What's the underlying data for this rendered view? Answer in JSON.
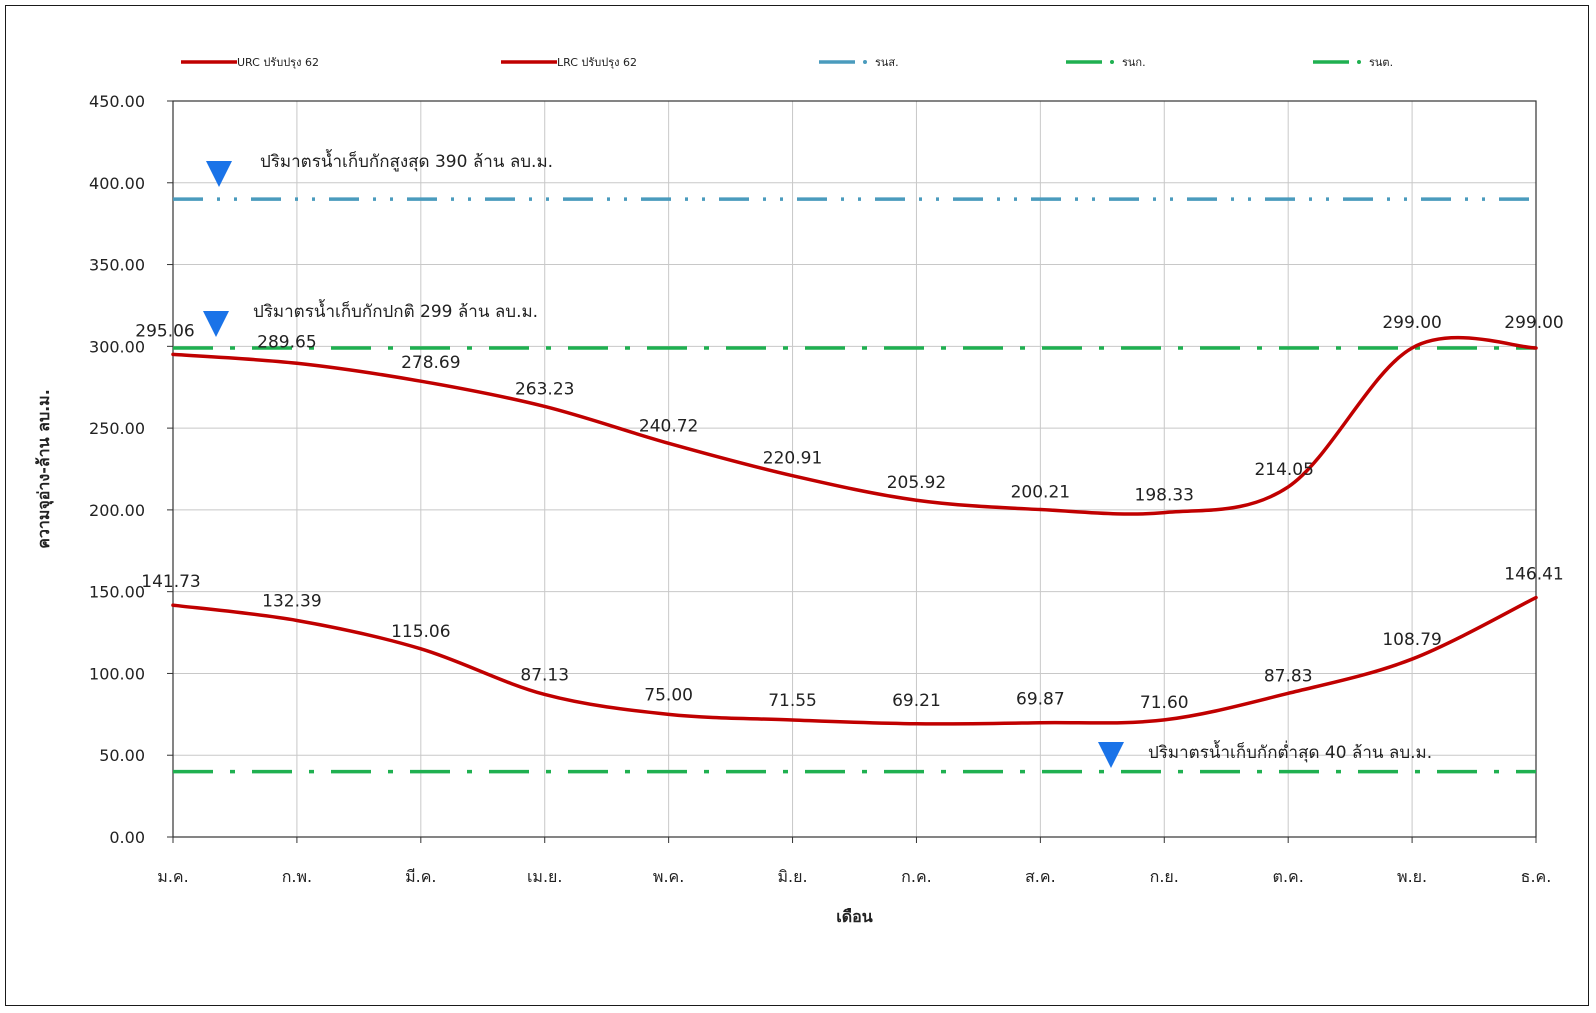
{
  "chart_data": {
    "type": "line",
    "xlabel": "เดือน",
    "ylabel": "ความจุอ่าง-ล้าน ลบ.ม.",
    "ylim": [
      0,
      450
    ],
    "yticks": [
      "0.00",
      "50.00",
      "100.00",
      "150.00",
      "200.00",
      "250.00",
      "300.00",
      "350.00",
      "400.00",
      "450.00"
    ],
    "grid": true,
    "legend_position": "top",
    "categories": [
      "ม.ค.",
      "ก.พ.",
      "มี.ค.",
      "เม.ย.",
      "พ.ค.",
      "มิ.ย.",
      "ก.ค.",
      "ส.ค.",
      "ก.ย.",
      "ต.ค.",
      "พ.ย.",
      "ธ.ค."
    ],
    "series": [
      {
        "name": "URC ปรับปรุง 62",
        "color": "#c00000",
        "style": "solid",
        "values": [
          295.06,
          289.65,
          278.69,
          263.23,
          240.72,
          220.91,
          205.92,
          200.21,
          198.33,
          214.05,
          299.0,
          299.0
        ],
        "labels": [
          "295.06",
          "289.65",
          "278.69",
          "263.23",
          "240.72",
          "220.91",
          "205.92",
          "200.21",
          "198.33",
          "214.05",
          "299.00",
          "299.00"
        ]
      },
      {
        "name": "LRC ปรับปรุง 62",
        "color": "#c00000",
        "style": "solid",
        "values": [
          141.73,
          132.39,
          115.06,
          87.13,
          75.0,
          71.55,
          69.21,
          69.87,
          71.6,
          87.83,
          108.79,
          146.41
        ],
        "labels": [
          "141.73",
          "132.39",
          "115.06",
          "87.13",
          "75.00",
          "71.55",
          "69.21",
          "69.87",
          "71.60",
          "87.83",
          "108.79",
          "146.41"
        ]
      },
      {
        "name": "รนส.",
        "color": "#4a9bbd",
        "style": "dash-dot-dot",
        "constant": 390
      },
      {
        "name": "รนก.",
        "color": "#1fb050",
        "style": "dash-dot",
        "constant": 299
      },
      {
        "name": "รนต.",
        "color": "#1fb050",
        "style": "dash-dot",
        "constant": 40
      }
    ],
    "annotations": [
      {
        "text": "ปริมาตรน้ำเก็บกักสูงสุด   390 ล้าน ลบ.ม.",
        "marker_color": "#1a73e8"
      },
      {
        "text": "ปริมาตรน้ำเก็บกักปกติ  299 ล้าน ลบ.ม.",
        "marker_color": "#1a73e8"
      },
      {
        "text": "ปริมาตรน้ำเก็บกักต่ำสุด 40 ล้าน ลบ.ม.",
        "marker_color": "#1a73e8"
      }
    ]
  }
}
